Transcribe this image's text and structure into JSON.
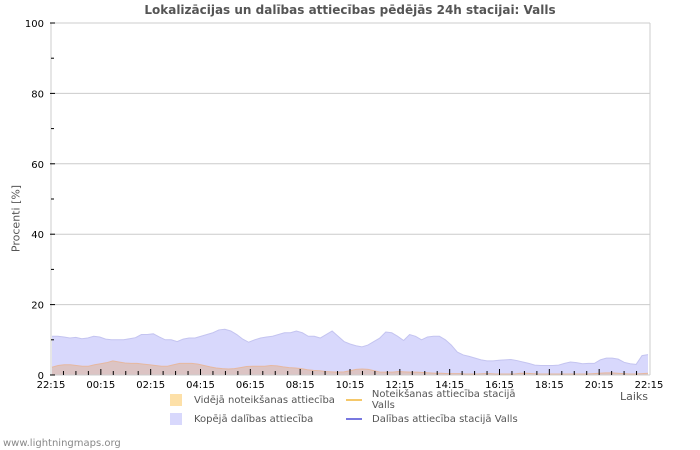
{
  "chart_data": {
    "type": "area",
    "title": "Lokalizācijas un dalības attiecības pēdējās 24h stacijai: Valls",
    "xlabel": "Laiks",
    "ylabel": "Procenti   [%]",
    "ylim": [
      0,
      100
    ],
    "yticks": [
      0,
      20,
      40,
      60,
      80,
      100
    ],
    "xtick_labels": [
      "22:15",
      "00:15",
      "02:15",
      "04:15",
      "06:15",
      "08:15",
      "10:15",
      "12:15",
      "14:15",
      "16:15",
      "18:15",
      "20:15",
      "22:15"
    ],
    "grid": true,
    "legend_position": "bottom",
    "x_interval_minutes": 15,
    "series": [
      {
        "name": "Kopējā dalības attiecība",
        "kind": "area",
        "color": "#d8d8fc",
        "values": [
          11,
          11,
          10.8,
          10.5,
          10.7,
          10.3,
          10.5,
          11,
          10.8,
          10.2,
          10,
          10,
          10,
          10.3,
          10.6,
          11.5,
          11.5,
          11.7,
          10.8,
          10,
          10,
          9.5,
          10.2,
          10.5,
          10.5,
          11,
          11.5,
          12,
          12.8,
          13,
          12.5,
          11.5,
          10.2,
          9.3,
          10,
          10.5,
          10.8,
          11,
          11.5,
          12,
          12,
          12.5,
          12,
          11,
          11,
          10.5,
          11.5,
          12.5,
          11,
          9.5,
          8.8,
          8.3,
          8,
          8.5,
          9.5,
          10.5,
          12.2,
          12,
          11,
          9.8,
          11.5,
          11,
          10,
          10.8,
          11,
          11,
          10,
          8.5,
          6.5,
          5.7,
          5.3,
          4.8,
          4.3,
          4,
          4,
          4.2,
          4.3,
          4.4,
          4.1,
          3.7,
          3.3,
          2.8,
          2.7,
          2.7,
          2.7,
          2.8,
          3.3,
          3.7,
          3.5,
          3.2,
          3.3,
          3.3,
          4.3,
          4.8,
          4.8,
          4.5,
          3.6,
          3.2,
          3,
          5.5,
          5.8
        ]
      },
      {
        "name": "Vidējā noteikšanas attiecība",
        "kind": "area",
        "color": "#fde0a8",
        "values": [
          2.2,
          2.7,
          2.9,
          2.9,
          2.7,
          2.5,
          2.5,
          2.9,
          3.2,
          3.5,
          4,
          3.7,
          3.4,
          3.3,
          3.3,
          3.1,
          2.9,
          2.7,
          2.5,
          2.5,
          2.9,
          3.3,
          3.3,
          3.3,
          3.1,
          2.7,
          2.3,
          2,
          1.8,
          1.7,
          1.8,
          2.1,
          2.4,
          2.5,
          2.5,
          2.5,
          2.7,
          2.6,
          2.3,
          2.1,
          2,
          1.8,
          1.5,
          1.3,
          1.2,
          1,
          0.9,
          0.8,
          0.9,
          1.2,
          1.6,
          1.7,
          1.6,
          1.2,
          0.8,
          0.8,
          0.8,
          1.0,
          0.9,
          0.8,
          0.8,
          0.7,
          0.6,
          0.5,
          0.5,
          0.4,
          0.4,
          0.4,
          0.3,
          0.3,
          0.3,
          0.4,
          0.4,
          0.3,
          0.3,
          0.3,
          0.3,
          0.5,
          0.5,
          0.4,
          0.3,
          0.3,
          0.3,
          0.3,
          0.3,
          0.3,
          0.3,
          0.3,
          0.3,
          0.4,
          0.5,
          0.6,
          0.6,
          0.5,
          0.4,
          0.3,
          0.3,
          0.4,
          0.5
        ]
      },
      {
        "name": "Noteikšanas attiecība stacijā Valls",
        "kind": "line",
        "color": "#f5c86a",
        "values": []
      },
      {
        "name": "Dalības attiecība stacijā Valls",
        "kind": "line",
        "color": "#7878e0",
        "values": []
      }
    ]
  },
  "legend": {
    "items": [
      {
        "label": "Vidējā noteikšanas attiecība",
        "color": "#fde0a8",
        "kind": "box"
      },
      {
        "label": "Noteikšanas attiecība stacijā Valls",
        "color": "#f5c86a",
        "kind": "line"
      },
      {
        "label": "Kopējā dalības attiecība",
        "color": "#d8d8fc",
        "kind": "box"
      },
      {
        "label": "Dalības attiecība stacijā Valls",
        "color": "#7878e0",
        "kind": "line"
      }
    ]
  },
  "footer": "www.lightningmaps.org"
}
